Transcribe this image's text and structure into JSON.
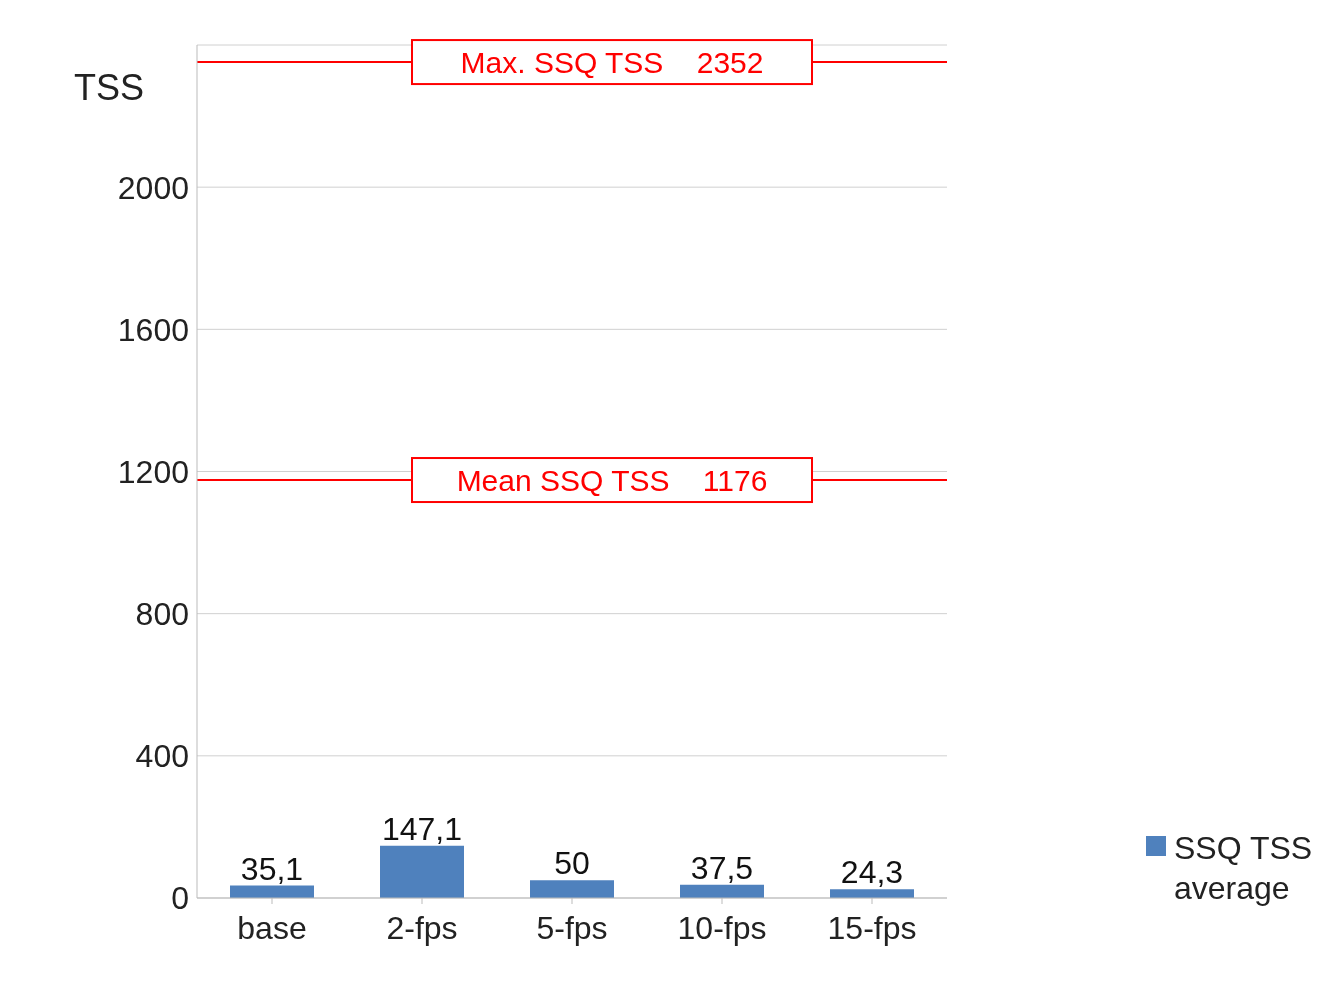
{
  "chart_data": {
    "type": "bar",
    "ylabel": "TSS",
    "categories": [
      "base",
      "2-fps",
      "5-fps",
      "10-fps",
      "15-fps"
    ],
    "series": [
      {
        "name": "SSQ TSS average",
        "color": "#4f81bd",
        "values": [
          35.1,
          147.1,
          50,
          37.5,
          24.3
        ]
      }
    ],
    "value_labels": [
      "35,1",
      "147,1",
      "50",
      "37,5",
      "24,3"
    ],
    "ylim": [
      0,
      2400
    ],
    "yticks": [
      0,
      400,
      800,
      1200,
      1600,
      2000
    ],
    "grid": "y",
    "legend": "bottom right",
    "ref_lines": [
      {
        "axis": "y",
        "value": 2352,
        "label": "Max. SSQ TSS    2352",
        "color": "#ff0000"
      },
      {
        "axis": "y",
        "value": 1176,
        "label": "Mean SSQ TSS    1176",
        "color": "#ff0000"
      }
    ]
  }
}
